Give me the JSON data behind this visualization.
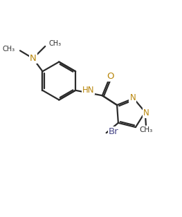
{
  "line_color": "#2b2b2b",
  "bond_width": 1.6,
  "figsize": [
    2.63,
    3.14
  ],
  "dpi": 100,
  "bg_color": "#ffffff",
  "atom_colors": {
    "N": "#b8860b",
    "O": "#b8860b",
    "Br": "#4a4a8a",
    "C": "#2b2b2b"
  },
  "font_size": 8.5,
  "small_font_size": 7.5,
  "xlim": [
    0,
    10
  ],
  "ylim": [
    0,
    12
  ]
}
